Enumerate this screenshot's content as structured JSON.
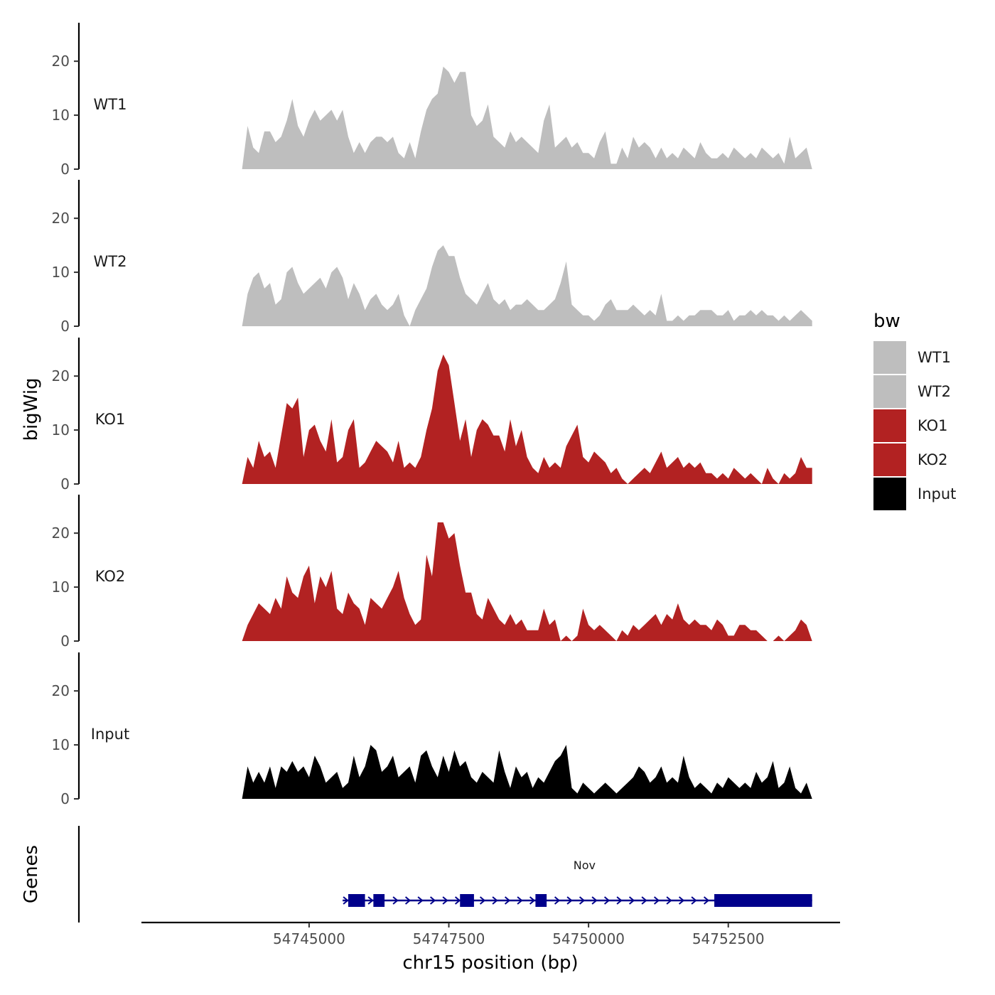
{
  "chart_data": {
    "type": "area",
    "chromosome": "chr15",
    "xlabel": "chr15 position (bp)",
    "ylabel": "bigWig",
    "genes_label": "Genes",
    "xlim": [
      54742000,
      54754500
    ],
    "x_ticks": [
      54745000,
      54747500,
      54750000,
      54752500
    ],
    "x_tick_labels": [
      "54745000",
      "54747500",
      "54750000",
      "54752500"
    ],
    "ylim": [
      0,
      27
    ],
    "y_ticks": [
      0,
      10,
      20
    ],
    "y_tick_labels": [
      "0",
      "10",
      "20"
    ],
    "legend": {
      "title": "bw",
      "position": "right",
      "entries": [
        {
          "label": "WT1",
          "color": "#bebebe"
        },
        {
          "label": "WT2",
          "color": "#bebebe"
        },
        {
          "label": "KO1",
          "color": "#b22222"
        },
        {
          "label": "KO2",
          "color": "#b22222"
        },
        {
          "label": "Input",
          "color": "#000000"
        }
      ]
    },
    "series": [
      {
        "name": "WT1",
        "color": "#bebebe",
        "x": [
          54743800,
          54743900,
          54744000,
          54744100,
          54744200,
          54744300,
          54744400,
          54744500,
          54744600,
          54744700,
          54744800,
          54744900,
          54745000,
          54745100,
          54745200,
          54745300,
          54745400,
          54745500,
          54745600,
          54745700,
          54745800,
          54745900,
          54746000,
          54746100,
          54746200,
          54746300,
          54746400,
          54746500,
          54746600,
          54746700,
          54746800,
          54746900,
          54747000,
          54747100,
          54747200,
          54747300,
          54747400,
          54747500,
          54747600,
          54747700,
          54747800,
          54747900,
          54748000,
          54748100,
          54748200,
          54748300,
          54748400,
          54748500,
          54748600,
          54748700,
          54748800,
          54748900,
          54749000,
          54749100,
          54749200,
          54749300,
          54749400,
          54749500,
          54749600,
          54749700,
          54749800,
          54749900,
          54750000,
          54750100,
          54750200,
          54750300,
          54750400,
          54750500,
          54750600,
          54750700,
          54750800,
          54750900,
          54751000,
          54751100,
          54751200,
          54751300,
          54751400,
          54751500,
          54751600,
          54751700,
          54751800,
          54751900,
          54752000,
          54752100,
          54752200,
          54752300,
          54752400,
          54752500,
          54752600,
          54752700,
          54752800,
          54752900,
          54753000,
          54753100,
          54753200,
          54753300,
          54753400,
          54753500,
          54753600,
          54753700,
          54753800,
          54753900,
          54754000
        ],
        "values": [
          0,
          8,
          4,
          3,
          7,
          7,
          5,
          6,
          9,
          13,
          8,
          6,
          9,
          11,
          9,
          10,
          11,
          9,
          11,
          6,
          3,
          5,
          3,
          5,
          6,
          6,
          5,
          6,
          3,
          2,
          5,
          2,
          7,
          11,
          13,
          14,
          19,
          18,
          16,
          18,
          18,
          10,
          8,
          9,
          12,
          6,
          5,
          4,
          7,
          5,
          6,
          5,
          4,
          3,
          9,
          12,
          4,
          5,
          6,
          4,
          5,
          3,
          3,
          2,
          5,
          7,
          1,
          1,
          4,
          2,
          6,
          4,
          5,
          4,
          2,
          4,
          2,
          3,
          2,
          4,
          3,
          2,
          5,
          3,
          2,
          2,
          3,
          2,
          4,
          3,
          2,
          3,
          2,
          4,
          3,
          2,
          3,
          1,
          6,
          2,
          3,
          4,
          0
        ]
      },
      {
        "name": "WT2",
        "color": "#bebebe",
        "x": [
          54743800,
          54743900,
          54744000,
          54744100,
          54744200,
          54744300,
          54744400,
          54744500,
          54744600,
          54744700,
          54744800,
          54744900,
          54745000,
          54745100,
          54745200,
          54745300,
          54745400,
          54745500,
          54745600,
          54745700,
          54745800,
          54745900,
          54746000,
          54746100,
          54746200,
          54746300,
          54746400,
          54746500,
          54746600,
          54746700,
          54746800,
          54746900,
          54747000,
          54747100,
          54747200,
          54747300,
          54747400,
          54747500,
          54747600,
          54747700,
          54747800,
          54747900,
          54748000,
          54748100,
          54748200,
          54748300,
          54748400,
          54748500,
          54748600,
          54748700,
          54748800,
          54748900,
          54749000,
          54749100,
          54749200,
          54749300,
          54749400,
          54749500,
          54749600,
          54749700,
          54749800,
          54749900,
          54750000,
          54750100,
          54750200,
          54750300,
          54750400,
          54750500,
          54750600,
          54750700,
          54750800,
          54750900,
          54751000,
          54751100,
          54751200,
          54751300,
          54751400,
          54751500,
          54751600,
          54751700,
          54751800,
          54751900,
          54752000,
          54752100,
          54752200,
          54752300,
          54752400,
          54752500,
          54752600,
          54752700,
          54752800,
          54752900,
          54753000,
          54753100,
          54753200,
          54753300,
          54753400,
          54753500,
          54753600,
          54753700,
          54753800,
          54753900,
          54754000
        ],
        "values": [
          0,
          6,
          9,
          10,
          7,
          8,
          4,
          5,
          10,
          11,
          8,
          6,
          7,
          8,
          9,
          7,
          10,
          11,
          9,
          5,
          8,
          6,
          3,
          5,
          6,
          4,
          3,
          4,
          6,
          2,
          0,
          3,
          5,
          7,
          11,
          14,
          15,
          13,
          13,
          9,
          6,
          5,
          4,
          6,
          8,
          5,
          4,
          5,
          3,
          4,
          4,
          5,
          4,
          3,
          3,
          4,
          5,
          8,
          12,
          4,
          3,
          2,
          2,
          1,
          2,
          4,
          5,
          3,
          3,
          3,
          4,
          3,
          2,
          3,
          2,
          6,
          1,
          1,
          2,
          1,
          2,
          2,
          3,
          3,
          3,
          2,
          2,
          3,
          1,
          2,
          2,
          3,
          2,
          3,
          2,
          2,
          1,
          2,
          1,
          2,
          3,
          2,
          1
        ]
      },
      {
        "name": "KO1",
        "color": "#b22222",
        "x": [
          54743800,
          54743900,
          54744000,
          54744100,
          54744200,
          54744300,
          54744400,
          54744500,
          54744600,
          54744700,
          54744800,
          54744900,
          54745000,
          54745100,
          54745200,
          54745300,
          54745400,
          54745500,
          54745600,
          54745700,
          54745800,
          54745900,
          54746000,
          54746100,
          54746200,
          54746300,
          54746400,
          54746500,
          54746600,
          54746700,
          54746800,
          54746900,
          54747000,
          54747100,
          54747200,
          54747300,
          54747400,
          54747500,
          54747600,
          54747700,
          54747800,
          54747900,
          54748000,
          54748100,
          54748200,
          54748300,
          54748400,
          54748500,
          54748600,
          54748700,
          54748800,
          54748900,
          54749000,
          54749100,
          54749200,
          54749300,
          54749400,
          54749500,
          54749600,
          54749700,
          54749800,
          54749900,
          54750000,
          54750100,
          54750200,
          54750300,
          54750400,
          54750500,
          54750600,
          54750700,
          54750800,
          54750900,
          54751000,
          54751100,
          54751200,
          54751300,
          54751400,
          54751500,
          54751600,
          54751700,
          54751800,
          54751900,
          54752000,
          54752100,
          54752200,
          54752300,
          54752400,
          54752500,
          54752600,
          54752700,
          54752800,
          54752900,
          54753000,
          54753100,
          54753200,
          54753300,
          54753400,
          54753500,
          54753600,
          54753700,
          54753800,
          54753900,
          54754000
        ],
        "values": [
          0,
          5,
          3,
          8,
          5,
          6,
          3,
          9,
          15,
          14,
          16,
          5,
          10,
          11,
          8,
          6,
          12,
          4,
          5,
          10,
          12,
          3,
          4,
          6,
          8,
          7,
          6,
          4,
          8,
          3,
          4,
          3,
          5,
          10,
          14,
          21,
          24,
          22,
          15,
          8,
          12,
          5,
          10,
          12,
          11,
          9,
          9,
          6,
          12,
          7,
          10,
          5,
          3,
          2,
          5,
          3,
          4,
          3,
          7,
          9,
          11,
          5,
          4,
          6,
          5,
          4,
          2,
          3,
          1,
          0,
          1,
          2,
          3,
          2,
          4,
          6,
          3,
          4,
          5,
          3,
          4,
          3,
          4,
          2,
          2,
          1,
          2,
          1,
          3,
          2,
          1,
          2,
          1,
          0,
          3,
          1,
          0,
          2,
          1,
          2,
          5,
          3,
          3
        ]
      },
      {
        "name": "KO2",
        "color": "#b22222",
        "x": [
          54743800,
          54743900,
          54744000,
          54744100,
          54744200,
          54744300,
          54744400,
          54744500,
          54744600,
          54744700,
          54744800,
          54744900,
          54745000,
          54745100,
          54745200,
          54745300,
          54745400,
          54745500,
          54745600,
          54745700,
          54745800,
          54745900,
          54746000,
          54746100,
          54746200,
          54746300,
          54746400,
          54746500,
          54746600,
          54746700,
          54746800,
          54746900,
          54747000,
          54747100,
          54747200,
          54747300,
          54747400,
          54747500,
          54747600,
          54747700,
          54747800,
          54747900,
          54748000,
          54748100,
          54748200,
          54748300,
          54748400,
          54748500,
          54748600,
          54748700,
          54748800,
          54748900,
          54749000,
          54749100,
          54749200,
          54749300,
          54749400,
          54749500,
          54749600,
          54749700,
          54749800,
          54749900,
          54750000,
          54750100,
          54750200,
          54750300,
          54750400,
          54750500,
          54750600,
          54750700,
          54750800,
          54750900,
          54751000,
          54751100,
          54751200,
          54751300,
          54751400,
          54751500,
          54751600,
          54751700,
          54751800,
          54751900,
          54752000,
          54752100,
          54752200,
          54752300,
          54752400,
          54752500,
          54752600,
          54752700,
          54752800,
          54752900,
          54753000,
          54753100,
          54753200,
          54753300,
          54753400,
          54753500,
          54753600,
          54753700,
          54753800,
          54753900,
          54754000
        ],
        "values": [
          0,
          3,
          5,
          7,
          6,
          5,
          8,
          6,
          12,
          9,
          8,
          12,
          14,
          7,
          12,
          10,
          13,
          6,
          5,
          9,
          7,
          6,
          3,
          8,
          7,
          6,
          8,
          10,
          13,
          8,
          5,
          3,
          4,
          16,
          12,
          22,
          22,
          19,
          20,
          14,
          9,
          9,
          5,
          4,
          8,
          6,
          4,
          3,
          5,
          3,
          4,
          2,
          2,
          2,
          6,
          3,
          4,
          0,
          1,
          0,
          1,
          6,
          3,
          2,
          3,
          2,
          1,
          0,
          2,
          1,
          3,
          2,
          3,
          4,
          5,
          3,
          5,
          4,
          7,
          4,
          3,
          4,
          3,
          3,
          2,
          4,
          3,
          1,
          1,
          3,
          3,
          2,
          2,
          1,
          0,
          0,
          1,
          0,
          1,
          2,
          4,
          3,
          0
        ]
      },
      {
        "name": "Input",
        "color": "#000000",
        "x": [
          54743800,
          54743900,
          54744000,
          54744100,
          54744200,
          54744300,
          54744400,
          54744500,
          54744600,
          54744700,
          54744800,
          54744900,
          54745000,
          54745100,
          54745200,
          54745300,
          54745400,
          54745500,
          54745600,
          54745700,
          54745800,
          54745900,
          54746000,
          54746100,
          54746200,
          54746300,
          54746400,
          54746500,
          54746600,
          54746700,
          54746800,
          54746900,
          54747000,
          54747100,
          54747200,
          54747300,
          54747400,
          54747500,
          54747600,
          54747700,
          54747800,
          54747900,
          54748000,
          54748100,
          54748200,
          54748300,
          54748400,
          54748500,
          54748600,
          54748700,
          54748800,
          54748900,
          54749000,
          54749100,
          54749200,
          54749300,
          54749400,
          54749500,
          54749600,
          54749700,
          54749800,
          54749900,
          54750000,
          54750100,
          54750200,
          54750300,
          54750400,
          54750500,
          54750600,
          54750700,
          54750800,
          54750900,
          54751000,
          54751100,
          54751200,
          54751300,
          54751400,
          54751500,
          54751600,
          54751700,
          54751800,
          54751900,
          54752000,
          54752100,
          54752200,
          54752300,
          54752400,
          54752500,
          54752600,
          54752700,
          54752800,
          54752900,
          54753000,
          54753100,
          54753200,
          54753300,
          54753400,
          54753500,
          54753600,
          54753700,
          54753800,
          54753900,
          54754000
        ],
        "values": [
          0,
          6,
          3,
          5,
          3,
          6,
          2,
          6,
          5,
          7,
          5,
          6,
          4,
          8,
          6,
          3,
          4,
          5,
          2,
          3,
          8,
          4,
          6,
          10,
          9,
          5,
          6,
          8,
          4,
          5,
          6,
          3,
          8,
          9,
          6,
          4,
          8,
          5,
          9,
          6,
          7,
          4,
          3,
          5,
          4,
          3,
          9,
          5,
          2,
          6,
          4,
          5,
          2,
          4,
          3,
          5,
          7,
          8,
          10,
          2,
          1,
          3,
          2,
          1,
          2,
          3,
          2,
          1,
          2,
          3,
          4,
          6,
          5,
          3,
          4,
          6,
          3,
          4,
          3,
          8,
          4,
          2,
          3,
          2,
          1,
          3,
          2,
          4,
          3,
          2,
          3,
          2,
          5,
          3,
          4,
          7,
          2,
          3,
          6,
          2,
          1,
          3,
          0
        ]
      }
    ],
    "gene_track": {
      "gene_name": "Nov",
      "strand": "+",
      "start": 54745600,
      "end": 54754000,
      "exons": [
        [
          54745700,
          54746000
        ],
        [
          54746150,
          54746350
        ],
        [
          54747700,
          54747950
        ],
        [
          54749050,
          54749250
        ],
        [
          54752250,
          54754000
        ]
      ]
    }
  }
}
